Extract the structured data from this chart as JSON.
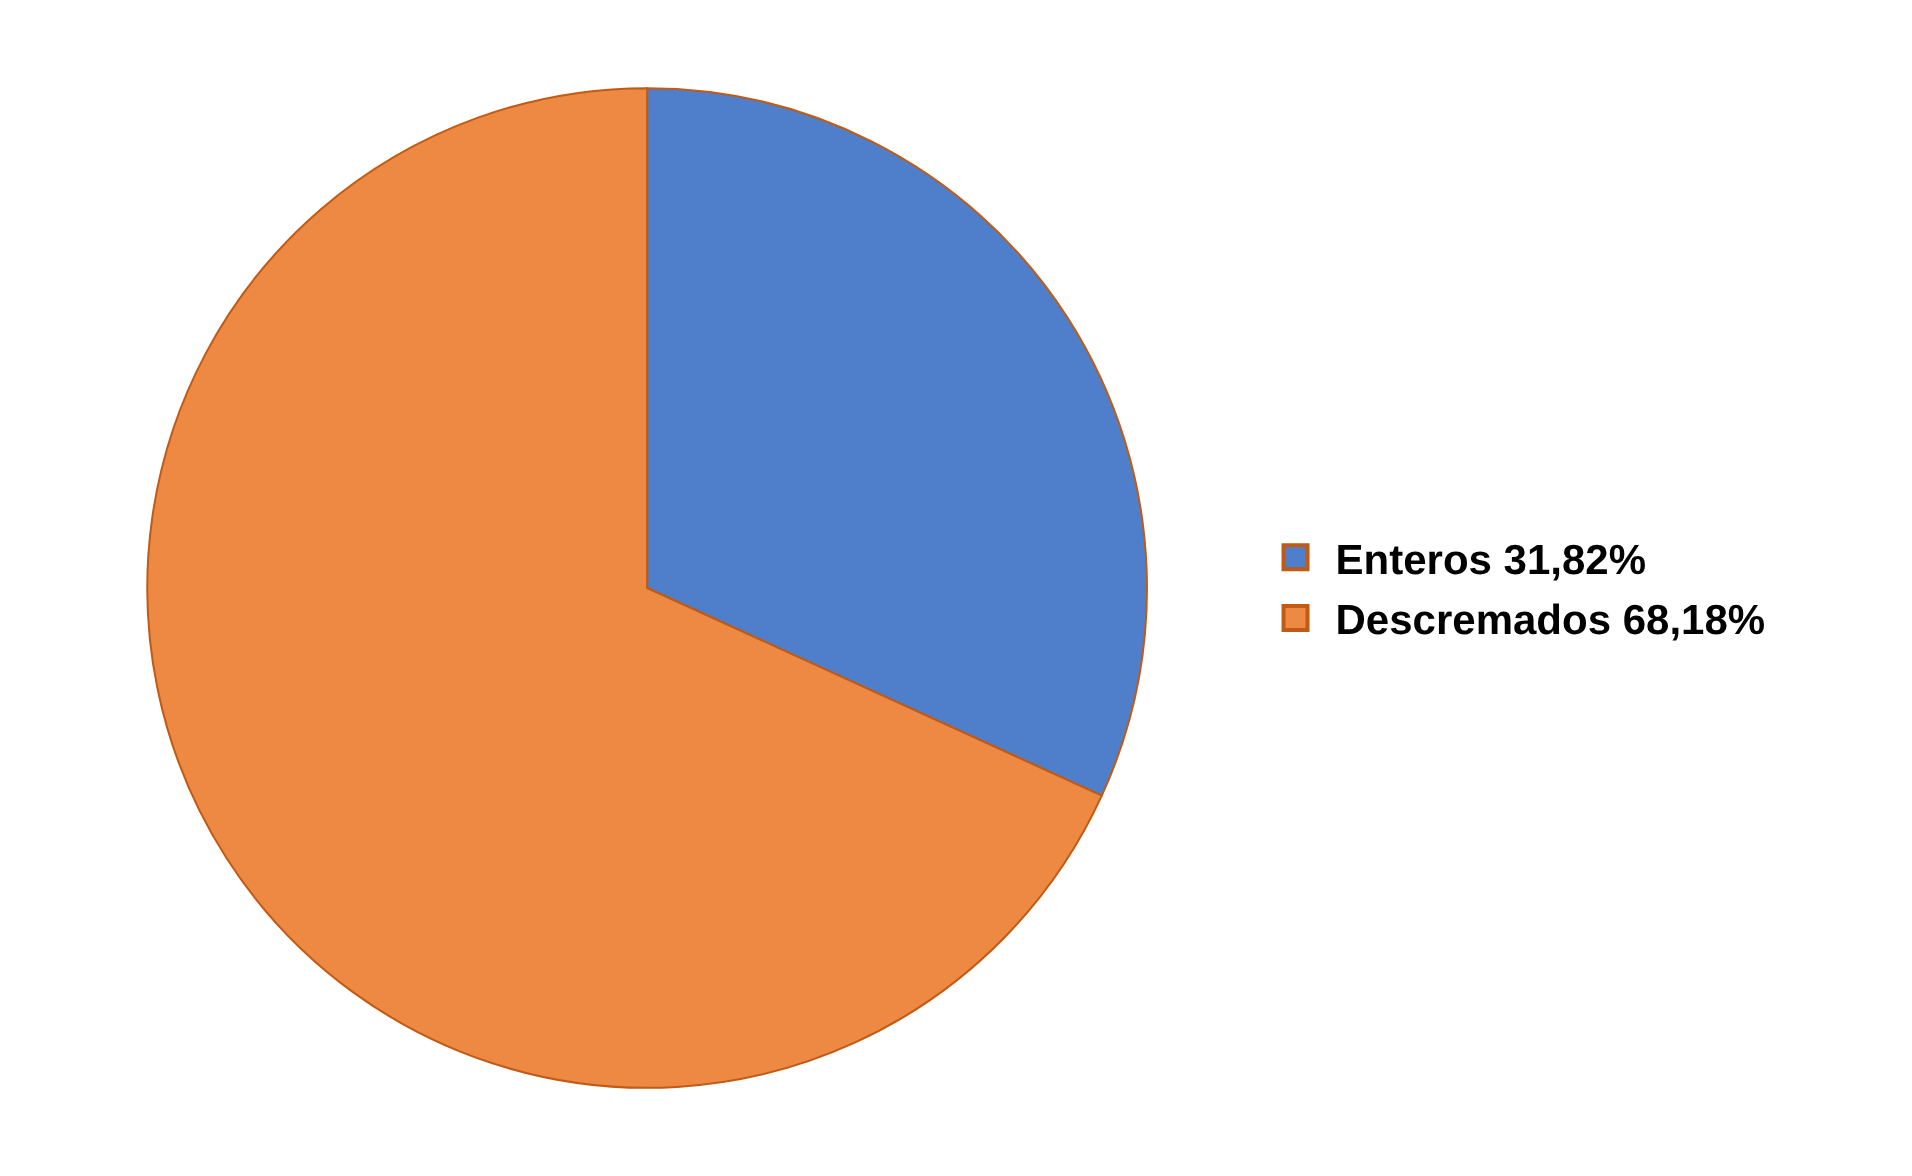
{
  "chart_data": {
    "type": "pie",
    "categories": [
      "Enteros 31,82%",
      "Descremados 68,18%"
    ],
    "values": [
      31.82,
      68.18
    ],
    "colors": [
      "#4f7fcb",
      "#ed8942"
    ],
    "legend": "right"
  }
}
